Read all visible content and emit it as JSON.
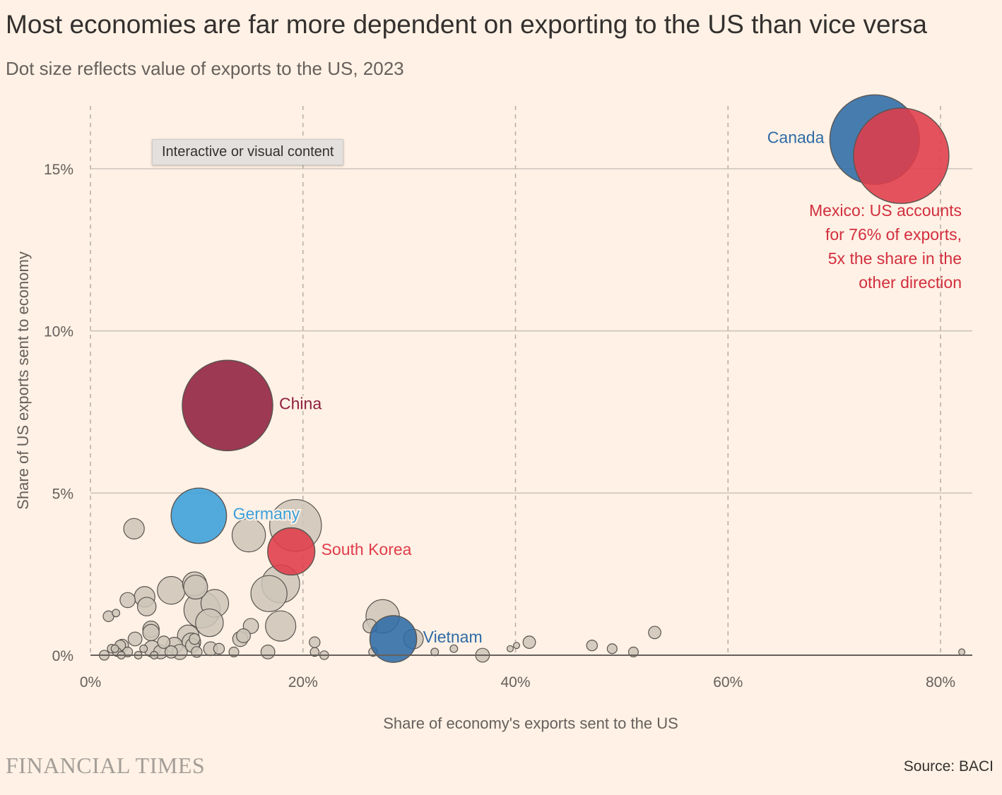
{
  "header": {
    "title": "Most economies are far more dependent on exporting to the US than vice versa",
    "subtitle": "Dot size reflects value of exports to the US, 2023"
  },
  "tooltip": {
    "label": "Interactive or visual content"
  },
  "footer": {
    "brand": "FINANCIAL TIMES",
    "source": "Source: BACI"
  },
  "chart_data": {
    "type": "scatter",
    "xlabel": "Share of economy's exports sent to the US",
    "ylabel": "Share of US exports sent to economy",
    "xlim": [
      0,
      83
    ],
    "ylim": [
      0,
      17
    ],
    "x_ticks": [
      0,
      20,
      40,
      60,
      80
    ],
    "x_tick_labels": [
      "0%",
      "20%",
      "40%",
      "60%",
      "80%"
    ],
    "y_ticks": [
      0,
      5,
      10,
      15
    ],
    "y_tick_labels": [
      "0%",
      "5%",
      "10%",
      "15%"
    ],
    "grid": {
      "x": "dashed",
      "y": "solid"
    },
    "size_encoding": "value of exports to the US, 2023",
    "colors": {
      "other": "#cec6b9",
      "outline": "#5a5450",
      "canada": "#2e6ba7",
      "mexico": "#e03c4a",
      "china": "#8f1f3e",
      "germany": "#3a9fdb",
      "south_korea": "#e03c4a",
      "vietnam": "#2e6ba7"
    },
    "highlighted": [
      {
        "name": "Canada",
        "x": 73.8,
        "y": 15.9,
        "value": 418,
        "color_key": "canada",
        "label": "Canada",
        "label_side": "left"
      },
      {
        "name": "Mexico",
        "x": 76.3,
        "y": 15.4,
        "value": 475,
        "color_key": "mexico",
        "label": "",
        "label_side": "none"
      },
      {
        "name": "China",
        "x": 12.9,
        "y": 7.7,
        "value": 427,
        "color_key": "china",
        "label": "China",
        "label_side": "right"
      },
      {
        "name": "Germany",
        "x": 10.2,
        "y": 4.3,
        "value": 160,
        "color_key": "germany",
        "label": "Germany",
        "label_side": "right"
      },
      {
        "name": "South Korea",
        "x": 18.9,
        "y": 3.2,
        "value": 116,
        "color_key": "south_korea",
        "label": "South Korea",
        "label_side": "right"
      },
      {
        "name": "Vietnam",
        "x": 28.5,
        "y": 0.5,
        "value": 114,
        "color_key": "vietnam",
        "label": "Vietnam",
        "label_side": "right"
      }
    ],
    "annotation": {
      "lines": [
        "Mexico: US accounts",
        "for 76% of exports,",
        "5x the share in the",
        "other direction"
      ],
      "color": "#d22e3e"
    },
    "others": [
      {
        "x": 19.3,
        "y": 4.0,
        "value": 140
      },
      {
        "x": 14.9,
        "y": 3.7,
        "value": 58
      },
      {
        "x": 4.1,
        "y": 3.9,
        "value": 22
      },
      {
        "x": 17.9,
        "y": 2.2,
        "value": 75
      },
      {
        "x": 16.8,
        "y": 1.9,
        "value": 68
      },
      {
        "x": 9.8,
        "y": 2.2,
        "value": 30
      },
      {
        "x": 9.9,
        "y": 2.1,
        "value": 30
      },
      {
        "x": 7.6,
        "y": 2.0,
        "value": 40
      },
      {
        "x": 11.7,
        "y": 1.6,
        "value": 40
      },
      {
        "x": 10.5,
        "y": 1.4,
        "value": 68
      },
      {
        "x": 11.2,
        "y": 1.0,
        "value": 40
      },
      {
        "x": 17.9,
        "y": 0.9,
        "value": 48
      },
      {
        "x": 27.5,
        "y": 1.2,
        "value": 58
      },
      {
        "x": 5.1,
        "y": 1.8,
        "value": 22
      },
      {
        "x": 5.3,
        "y": 1.5,
        "value": 18
      },
      {
        "x": 3.5,
        "y": 1.7,
        "value": 12
      },
      {
        "x": 15.1,
        "y": 0.9,
        "value": 12
      },
      {
        "x": 26.3,
        "y": 0.9,
        "value": 10
      },
      {
        "x": 5.7,
        "y": 0.8,
        "value": 14
      },
      {
        "x": 5.7,
        "y": 0.7,
        "value": 14
      },
      {
        "x": 9.2,
        "y": 0.6,
        "value": 24
      },
      {
        "x": 14.4,
        "y": 0.6,
        "value": 10
      },
      {
        "x": 14.1,
        "y": 0.5,
        "value": 12
      },
      {
        "x": 30.4,
        "y": 0.5,
        "value": 20
      },
      {
        "x": 4.2,
        "y": 0.5,
        "value": 10
      },
      {
        "x": 6.9,
        "y": 0.4,
        "value": 8
      },
      {
        "x": 9.8,
        "y": 0.5,
        "value": 6
      },
      {
        "x": 9.5,
        "y": 0.4,
        "value": 18
      },
      {
        "x": 9.6,
        "y": 0.3,
        "value": 10
      },
      {
        "x": 7.9,
        "y": 0.3,
        "value": 14
      },
      {
        "x": 11.3,
        "y": 0.2,
        "value": 10
      },
      {
        "x": 12.1,
        "y": 0.2,
        "value": 6
      },
      {
        "x": 5.8,
        "y": 0.2,
        "value": 14
      },
      {
        "x": 8.4,
        "y": 0.1,
        "value": 12
      },
      {
        "x": 6.6,
        "y": 0.1,
        "value": 10
      },
      {
        "x": 7.6,
        "y": 0.1,
        "value": 8
      },
      {
        "x": 3.0,
        "y": 0.3,
        "value": 8
      },
      {
        "x": 2.8,
        "y": 0.3,
        "value": 6
      },
      {
        "x": 1.7,
        "y": 1.2,
        "value": 6
      },
      {
        "x": 2.4,
        "y": 1.3,
        "value": 3
      },
      {
        "x": 2.0,
        "y": 0.2,
        "value": 4
      },
      {
        "x": 2.3,
        "y": 0.2,
        "value": 3
      },
      {
        "x": 2.5,
        "y": 0.1,
        "value": 4
      },
      {
        "x": 3.5,
        "y": 0.1,
        "value": 5
      },
      {
        "x": 1.3,
        "y": 0.0,
        "value": 5
      },
      {
        "x": 2.9,
        "y": 0.0,
        "value": 3
      },
      {
        "x": 4.5,
        "y": 0.0,
        "value": 3
      },
      {
        "x": 5.0,
        "y": 0.2,
        "value": 3
      },
      {
        "x": 6.0,
        "y": 0.0,
        "value": 3
      },
      {
        "x": 10.0,
        "y": 0.1,
        "value": 6
      },
      {
        "x": 13.5,
        "y": 0.1,
        "value": 5
      },
      {
        "x": 16.7,
        "y": 0.1,
        "value": 10
      },
      {
        "x": 21.1,
        "y": 0.4,
        "value": 6
      },
      {
        "x": 21.1,
        "y": 0.1,
        "value": 4
      },
      {
        "x": 22.0,
        "y": 0.0,
        "value": 4
      },
      {
        "x": 26.6,
        "y": 0.1,
        "value": 4
      },
      {
        "x": 32.4,
        "y": 0.1,
        "value": 3
      },
      {
        "x": 34.2,
        "y": 0.2,
        "value": 3
      },
      {
        "x": 36.9,
        "y": 0.0,
        "value": 10
      },
      {
        "x": 39.5,
        "y": 0.2,
        "value": 2
      },
      {
        "x": 40.1,
        "y": 0.3,
        "value": 2
      },
      {
        "x": 41.3,
        "y": 0.4,
        "value": 8
      },
      {
        "x": 47.2,
        "y": 0.3,
        "value": 6
      },
      {
        "x": 49.1,
        "y": 0.2,
        "value": 5
      },
      {
        "x": 51.1,
        "y": 0.1,
        "value": 5
      },
      {
        "x": 53.1,
        "y": 0.7,
        "value": 8
      },
      {
        "x": 82.0,
        "y": 0.1,
        "value": 2
      }
    ]
  }
}
